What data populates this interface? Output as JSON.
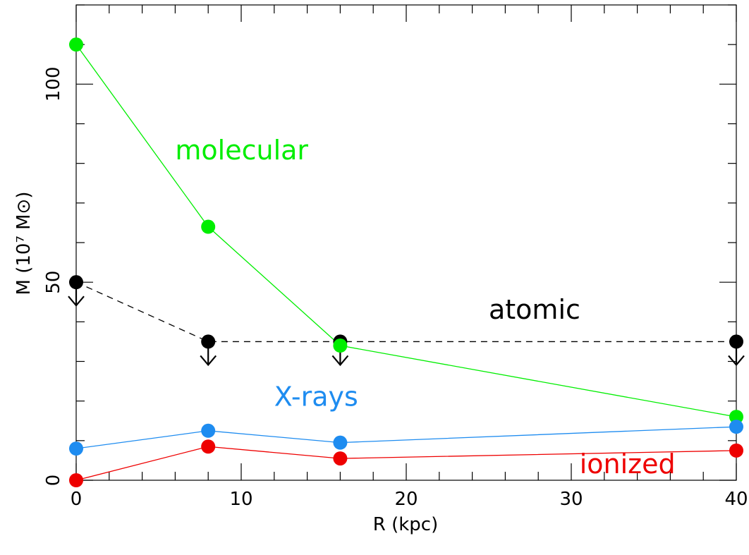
{
  "chart_data": {
    "type": "line",
    "xlabel": "R (kpc)",
    "ylabel": "M (10⁷ M⊙)",
    "xlim": [
      0,
      40
    ],
    "ylim": [
      0,
      120
    ],
    "x_ticks": [
      0,
      10,
      20,
      30,
      40
    ],
    "y_ticks": [
      0,
      50,
      100
    ],
    "series": [
      {
        "name": "molecular",
        "color": "#00ee00",
        "line": "solid",
        "x": [
          0,
          8,
          16,
          40
        ],
        "y": [
          110,
          64,
          34,
          16
        ]
      },
      {
        "name": "atomic",
        "color": "#000000",
        "line": "dashed",
        "upper_limit": true,
        "x": [
          0,
          8,
          16,
          40
        ],
        "y": [
          50,
          35,
          35,
          35
        ]
      },
      {
        "name": "X-rays",
        "color": "#1e8cf0",
        "line": "solid",
        "x": [
          0,
          8,
          16,
          40
        ],
        "y": [
          8,
          12.5,
          9.5,
          13.5
        ]
      },
      {
        "name": "ionized",
        "color": "#ee0000",
        "line": "solid",
        "x": [
          0,
          8,
          16,
          40
        ],
        "y": [
          0,
          8.5,
          5.5,
          7.5
        ]
      }
    ]
  }
}
